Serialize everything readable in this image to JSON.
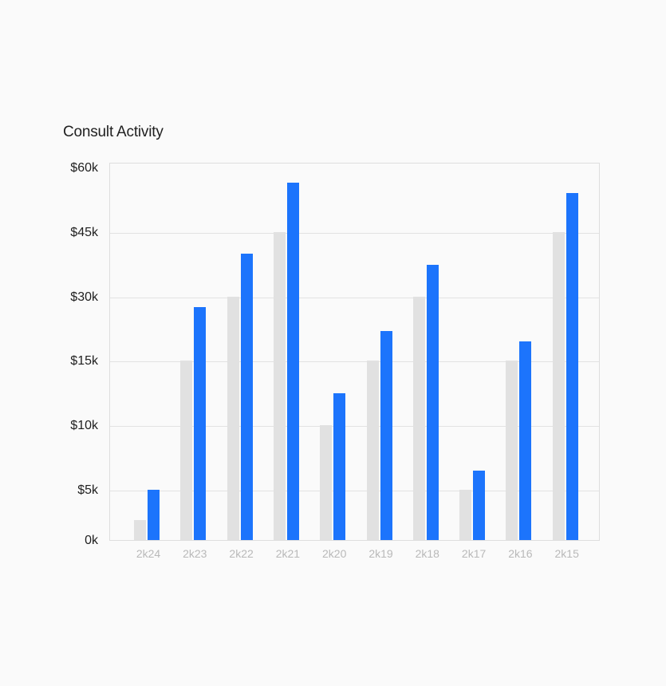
{
  "chart_data": {
    "type": "bar",
    "title": "Consult Activity",
    "categories": [
      "2k24",
      "2k23",
      "2k22",
      "2k21",
      "2k20",
      "2k19",
      "2k18",
      "2k17",
      "2k16",
      "2k15"
    ],
    "y_ticks": [
      "0k",
      "$5k",
      "$10k",
      "$15k",
      "$30k",
      "$45k",
      "$60k"
    ],
    "y_tick_values": [
      0,
      5000,
      10000,
      15000,
      30000,
      45000,
      60000
    ],
    "series": [
      {
        "values": [
          2000,
          15000,
          30000,
          45000,
          10000,
          15000,
          30000,
          5000,
          15000,
          45000
        ],
        "color": "#e1e1e1"
      },
      {
        "values": [
          5000,
          27500,
          40000,
          56500,
          12500,
          22000,
          37500,
          6500,
          19500,
          54000
        ],
        "color": "#1c74fc"
      }
    ],
    "grid": true,
    "legend": "none"
  }
}
